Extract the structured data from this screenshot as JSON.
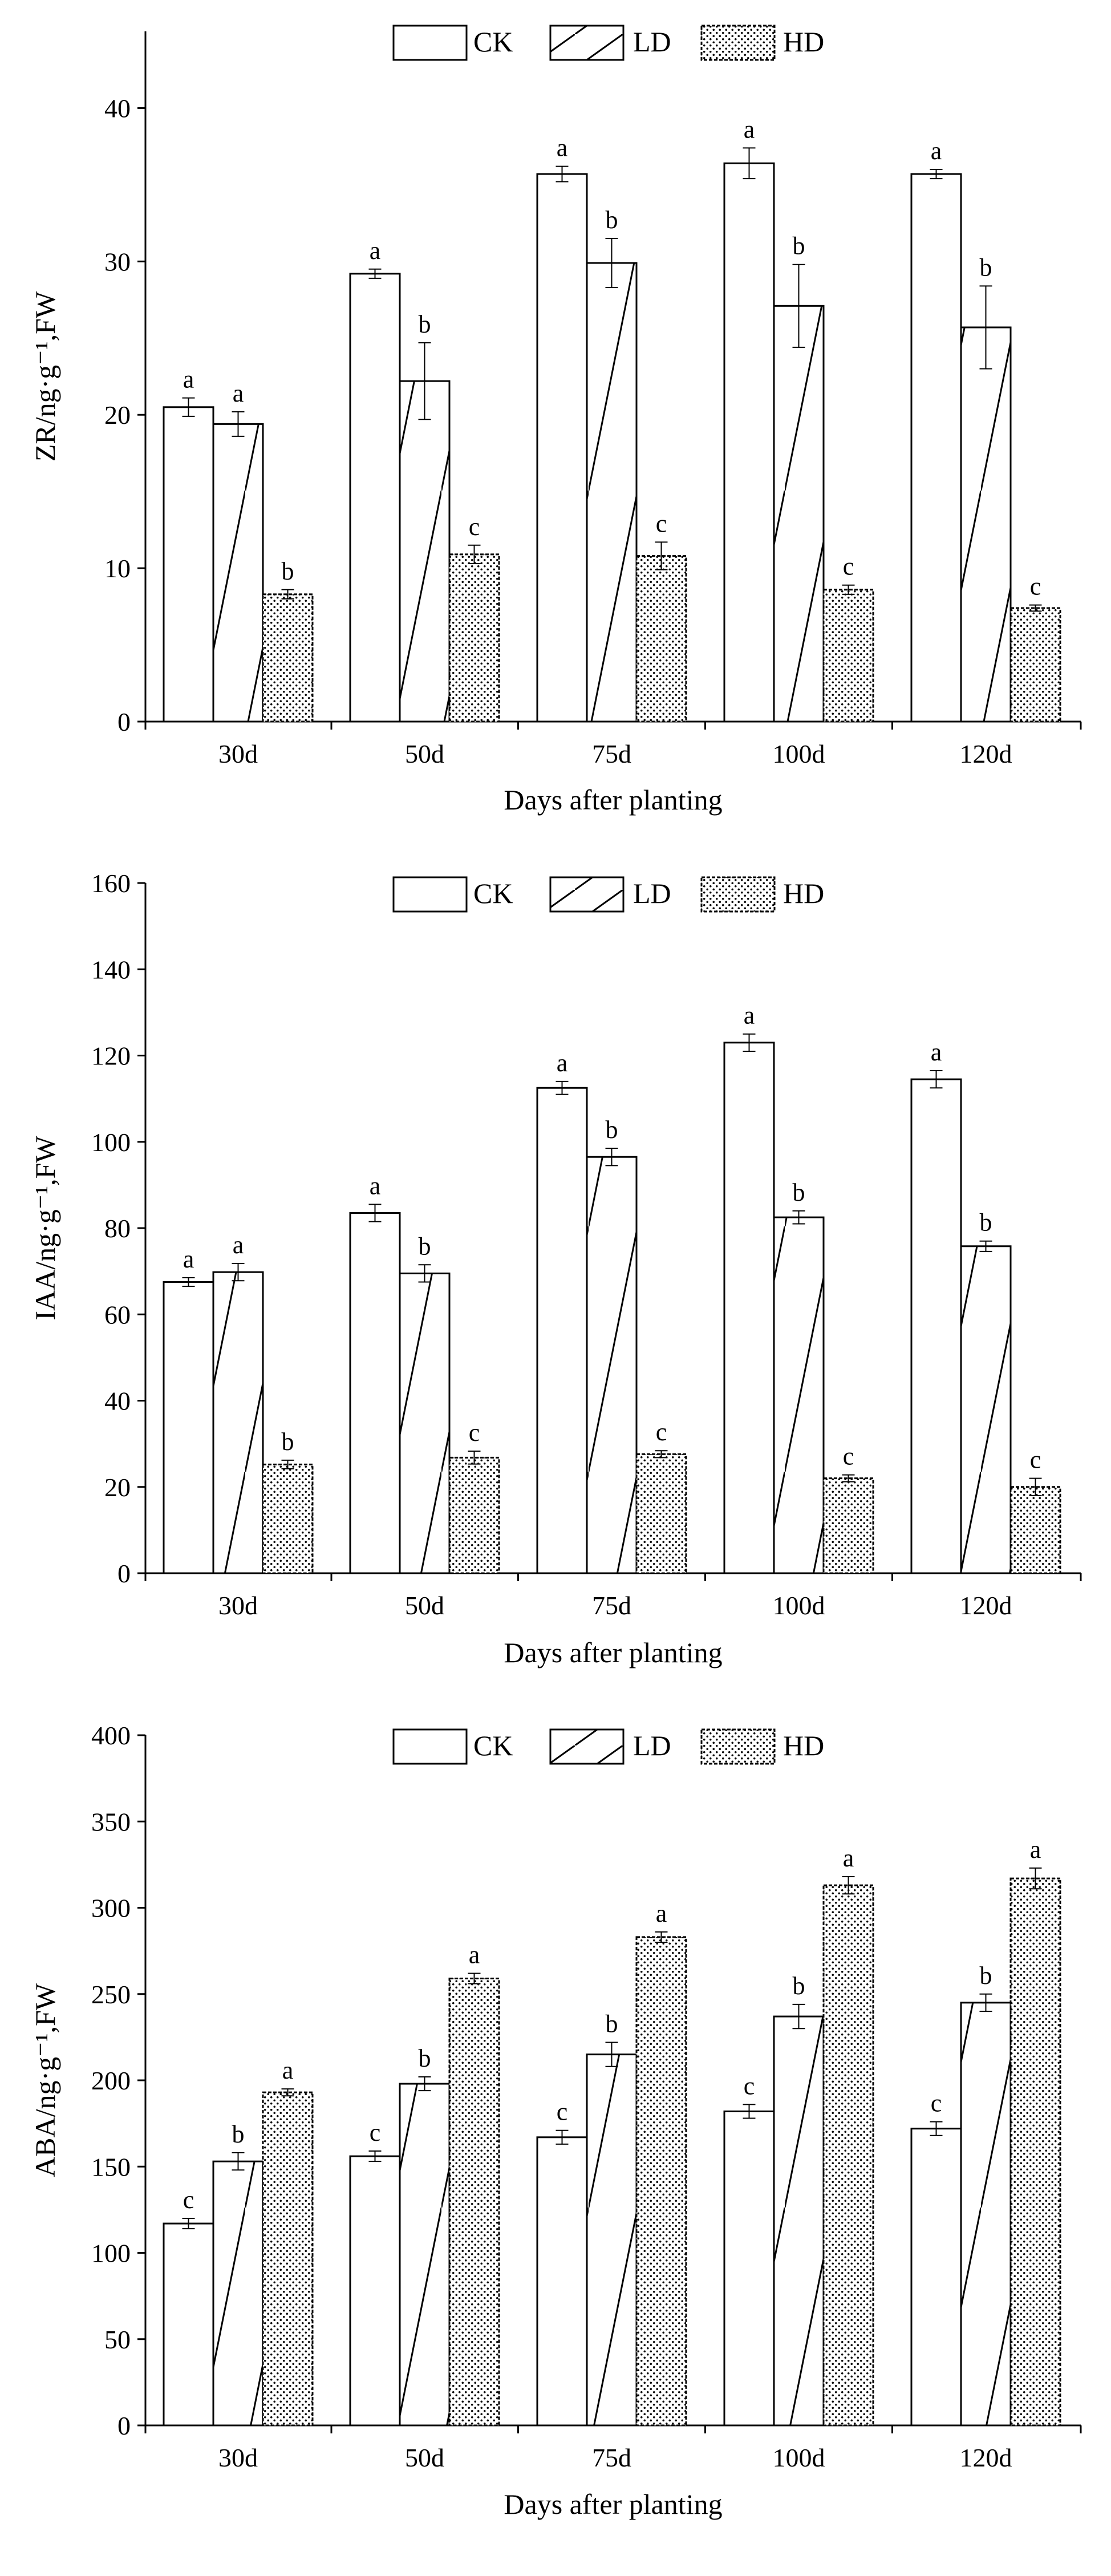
{
  "colors": {
    "ink": "#000000",
    "bar_fill": "#ffffff"
  },
  "legend": [
    {
      "key": "CK",
      "label": "CK",
      "pattern": "none"
    },
    {
      "key": "LD",
      "label": "LD",
      "pattern": "diagonal-hatch"
    },
    {
      "key": "HD",
      "label": "HD",
      "pattern": "dots"
    }
  ],
  "chart_data": [
    {
      "type": "bar",
      "xlabel": "Days after planting",
      "ylabel": "ZR/ng·g⁻¹,FW",
      "categories": [
        "30d",
        "50d",
        "75d",
        "100d",
        "120d"
      ],
      "ylim": [
        0,
        45
      ],
      "yticks": [
        0,
        10,
        20,
        30,
        40
      ],
      "series": [
        {
          "name": "CK",
          "values": [
            20.5,
            29.2,
            35.7,
            36.4,
            35.7
          ],
          "errors": [
            0.6,
            0.3,
            0.5,
            1.0,
            0.3
          ],
          "letters": [
            "a",
            "a",
            "a",
            "a",
            "a"
          ]
        },
        {
          "name": "LD",
          "values": [
            19.4,
            22.2,
            29.9,
            27.1,
            25.7
          ],
          "errors": [
            0.8,
            2.5,
            1.6,
            2.7,
            2.7
          ],
          "letters": [
            "a",
            "b",
            "b",
            "b",
            "b"
          ]
        },
        {
          "name": "HD",
          "values": [
            8.3,
            10.9,
            10.8,
            8.6,
            7.4
          ],
          "errors": [
            0.3,
            0.6,
            0.9,
            0.3,
            0.2
          ],
          "letters": [
            "b",
            "c",
            "c",
            "c",
            "c"
          ]
        }
      ]
    },
    {
      "type": "bar",
      "xlabel": "Days after planting",
      "ylabel": "IAA/ng·g⁻¹,FW",
      "categories": [
        "30d",
        "50d",
        "75d",
        "100d",
        "120d"
      ],
      "ylim": [
        0,
        160
      ],
      "yticks": [
        0,
        20,
        40,
        60,
        80,
        100,
        120,
        140,
        160
      ],
      "series": [
        {
          "name": "CK",
          "values": [
            67.5,
            83.5,
            112.5,
            123.0,
            114.5
          ],
          "errors": [
            1.0,
            2.0,
            1.5,
            2.0,
            2.0
          ],
          "letters": [
            "a",
            "a",
            "a",
            "a",
            "a"
          ]
        },
        {
          "name": "LD",
          "values": [
            69.8,
            69.5,
            96.5,
            82.5,
            75.8
          ],
          "errors": [
            2.0,
            2.0,
            2.0,
            1.5,
            1.2
          ],
          "letters": [
            "a",
            "b",
            "b",
            "b",
            "b"
          ]
        },
        {
          "name": "HD",
          "values": [
            25.2,
            26.8,
            27.6,
            22.0,
            20.0
          ],
          "errors": [
            1.0,
            1.5,
            0.8,
            0.8,
            2.0
          ],
          "letters": [
            "b",
            "c",
            "c",
            "c",
            "c"
          ]
        }
      ]
    },
    {
      "type": "bar",
      "xlabel": "Days after planting",
      "ylabel": "ABA/ng·g⁻¹,FW",
      "categories": [
        "30d",
        "50d",
        "75d",
        "100d",
        "120d"
      ],
      "ylim": [
        0,
        400
      ],
      "yticks": [
        0,
        50,
        100,
        150,
        200,
        250,
        300,
        350,
        400
      ],
      "series": [
        {
          "name": "CK",
          "values": [
            117,
            156,
            167,
            182,
            172
          ],
          "errors": [
            3,
            3,
            4,
            4,
            4
          ],
          "letters": [
            "c",
            "c",
            "c",
            "c",
            "c"
          ]
        },
        {
          "name": "LD",
          "values": [
            153,
            198,
            215,
            237,
            245
          ],
          "errors": [
            5,
            4,
            7,
            7,
            5
          ],
          "letters": [
            "b",
            "b",
            "b",
            "b",
            "b"
          ]
        },
        {
          "name": "HD",
          "values": [
            193,
            259,
            283,
            313,
            317
          ],
          "errors": [
            2,
            3,
            3,
            5,
            6
          ],
          "letters": [
            "a",
            "a",
            "a",
            "a",
            "a"
          ]
        }
      ]
    }
  ]
}
